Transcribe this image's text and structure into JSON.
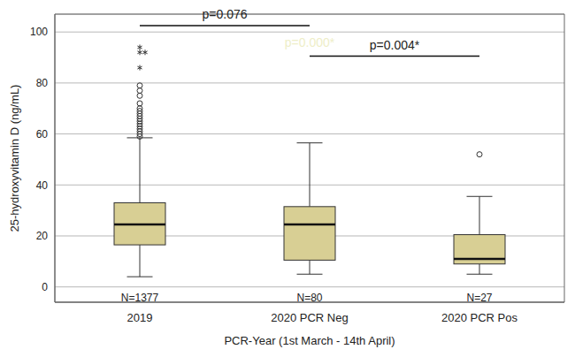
{
  "chart_data": {
    "type": "boxplot",
    "x_label": "PCR-Year (1st March - 14th April)",
    "y_label": "25-hydroxyvitamin D (ng/mL)",
    "categories": [
      "2019",
      "2020 PCR Neg",
      "2020 PCR Pos"
    ],
    "n_labels": [
      "N=1377",
      "N=80",
      "N=27"
    ],
    "min": [
      4,
      5,
      5
    ],
    "q1": [
      16.5,
      10.5,
      9
    ],
    "median": [
      24.5,
      24.5,
      11
    ],
    "q3": [
      33,
      31.5,
      20.5
    ],
    "max": [
      58.5,
      56.5,
      35.5
    ],
    "outliers": [
      [
        59,
        60,
        61,
        62,
        63,
        64,
        65,
        66,
        67,
        68,
        69,
        70,
        72,
        75,
        77,
        79
      ],
      [],
      [
        52
      ]
    ],
    "extremes": [
      [
        86,
        92,
        92,
        94
      ],
      [],
      []
    ],
    "color": "#d8cf94",
    "ylim": [
      -6,
      107
    ],
    "yticks": [
      0,
      20,
      40,
      60,
      80,
      100
    ],
    "grid": true,
    "annotations": [
      {
        "text": "p=0.076",
        "x1": "2019",
        "x2": "2020 PCR Neg",
        "y": 102.5
      },
      {
        "text": "p=0.004*",
        "x1": "2020 PCR Neg",
        "x2": "2020 PCR Pos",
        "y": 90.5
      },
      {
        "text": "p=0.000*",
        "x": "2020 PCR Neg",
        "y": 96,
        "color": "#eeeec8"
      }
    ]
  }
}
